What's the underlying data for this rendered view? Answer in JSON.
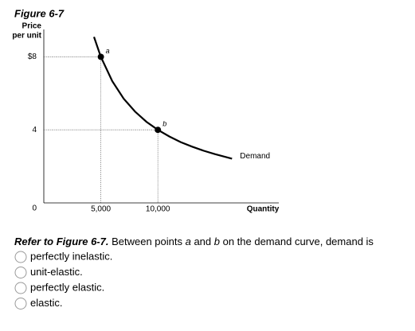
{
  "figure_label": "Figure 6-7",
  "chart_data": {
    "type": "line",
    "y_label_lines": [
      "Price",
      "per unit"
    ],
    "x_label": "Quantity",
    "xlim": [
      0,
      20600
    ],
    "ylim": [
      0,
      9.5
    ],
    "xticks": [
      {
        "value": 5000,
        "label": "5,000"
      },
      {
        "value": 10000,
        "label": "10,000"
      }
    ],
    "yticks": [
      0,
      4,
      {
        "value": 8,
        "label": "$8"
      }
    ],
    "series": [
      {
        "name": "Demand",
        "color": "#000000",
        "x": [
          4400,
          5000,
          6000,
          7000,
          8000,
          9000,
          10000,
          11000,
          12000,
          13000,
          14000,
          15000,
          16500
        ],
        "values": [
          9.09,
          8,
          6.67,
          5.71,
          5,
          4.44,
          4,
          3.64,
          3.33,
          3.08,
          2.86,
          2.67,
          2.42
        ]
      }
    ],
    "points": [
      {
        "label": "a",
        "x": 5000,
        "y": 8
      },
      {
        "label": "b",
        "x": 10000,
        "y": 4
      }
    ]
  },
  "question": {
    "runs": [
      "Refer to Figure 6-7.",
      " Between points ",
      "a",
      " and ",
      "b",
      " on the demand curve, demand is"
    ],
    "options": [
      "perfectly inelastic.",
      "unit-elastic.",
      "perfectly elastic.",
      "elastic."
    ]
  }
}
